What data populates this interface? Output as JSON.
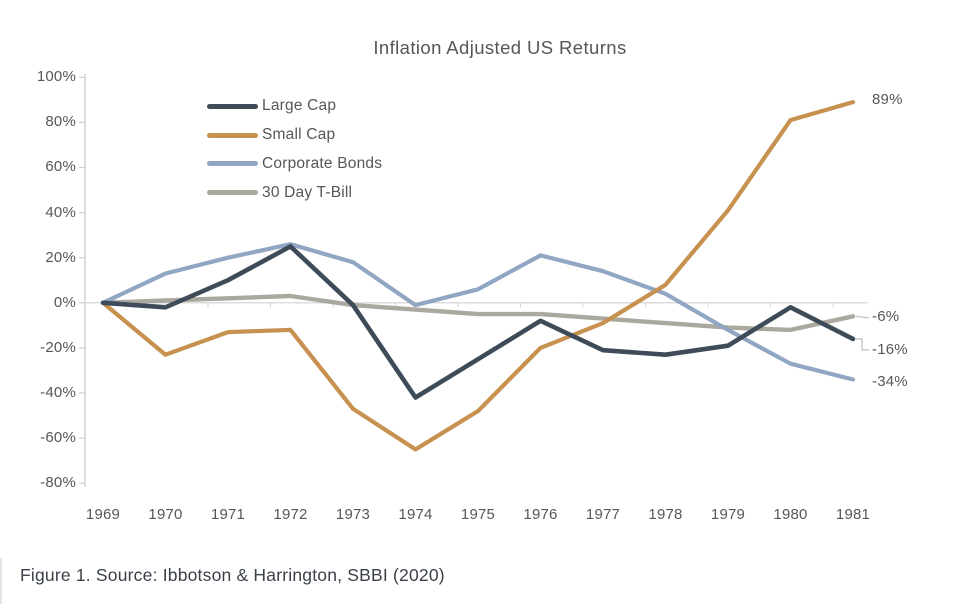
{
  "title": "Inflation Adjusted US Returns",
  "caption": "Figure 1. Source: Ibbotson & Harrington, SBBI (2020)",
  "chart_data": {
    "type": "line",
    "x": [
      1969,
      1970,
      1971,
      1972,
      1973,
      1974,
      1975,
      1976,
      1977,
      1978,
      1979,
      1980,
      1981
    ],
    "series": [
      {
        "name": "Large Cap",
        "color": "#3e4b58",
        "end_label": "-16%",
        "values": [
          0,
          -2,
          10,
          25,
          -1,
          -42,
          -25,
          -8,
          -21,
          -23,
          -19,
          -2,
          -16
        ]
      },
      {
        "name": "Small Cap",
        "color": "#c79150",
        "end_label": "89%",
        "values": [
          0,
          -23,
          -13,
          -12,
          -47,
          -65,
          -48,
          -20,
          -9,
          8,
          41,
          81,
          89
        ]
      },
      {
        "name": "Corporate Bonds",
        "color": "#91a6c3",
        "end_label": "-34%",
        "values": [
          0,
          13,
          20,
          26,
          18,
          -1,
          6,
          21,
          14,
          4,
          -12,
          -27,
          -34
        ]
      },
      {
        "name": "30 Day T-Bill",
        "color": "#aba89f",
        "end_label": "-6%",
        "values": [
          0,
          1,
          2,
          3,
          -1,
          -3,
          -5,
          -5,
          -7,
          -9,
          -11,
          -12,
          -6
        ]
      }
    ],
    "y_ticks": [
      "100%",
      "80%",
      "60%",
      "40%",
      "20%",
      "0%",
      "-20%",
      "-40%",
      "-60%",
      "-80%"
    ],
    "ylim": [
      -80,
      100
    ],
    "xlabel": "",
    "ylabel": "",
    "grid": "zero-line-only",
    "legend_position": "top-left-inside",
    "axis_color": "#cfcfcf",
    "zero_line_color": "#dcdcdc",
    "text_color": "#54575b"
  }
}
